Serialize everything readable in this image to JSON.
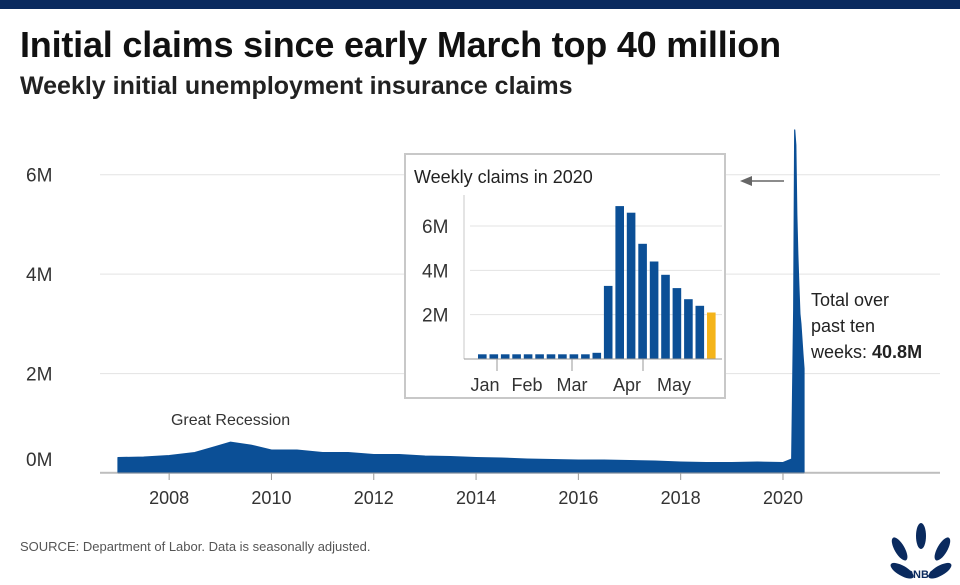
{
  "header": {
    "title": "Initial claims since early March top 40 million",
    "subtitle": "Weekly initial unemployment insurance claims"
  },
  "annotation": {
    "line1": "Total over",
    "line2": "past ten",
    "line3_prefix": "weeks: ",
    "line3_value": "40.8M"
  },
  "source": "SOURCE: Department of Labor. Data is seasonally adjusted.",
  "logo": {
    "icon": "nbc-peacock-icon",
    "text": "CNBC"
  },
  "colors": {
    "bar": "#0b4f96",
    "highlight": "#f4b41a",
    "grid": "#e3e3e3",
    "axis": "#9a9a9a"
  },
  "chart_data": [
    {
      "type": "area",
      "title": "",
      "xlabel": "",
      "ylabel": "",
      "x_ticks": [
        "2008",
        "2010",
        "2012",
        "2014",
        "2016",
        "2018",
        "2020"
      ],
      "x_tick_values": [
        2008,
        2010,
        2012,
        2014,
        2016,
        2018,
        2020
      ],
      "y_ticks": [
        "0M",
        "2M",
        "4M",
        "6M"
      ],
      "y_tick_values": [
        0,
        2,
        4,
        6
      ],
      "ylim": [
        0,
        6.9
      ],
      "xlim": [
        2007.0,
        2020.45
      ],
      "grid": true,
      "annotation": "Great Recession",
      "annotation_x": 2009.2,
      "series": [
        {
          "units": "millions",
          "x": [
            2007.0,
            2007.5,
            2008.0,
            2008.5,
            2008.9,
            2009.2,
            2009.6,
            2010.0,
            2010.5,
            2011.0,
            2011.5,
            2012.0,
            2012.5,
            2013.0,
            2013.5,
            2014.0,
            2014.5,
            2015.0,
            2015.5,
            2016.0,
            2016.5,
            2017.0,
            2017.5,
            2018.0,
            2018.5,
            2019.0,
            2019.5,
            2020.0,
            2020.17,
            2020.21,
            2020.23,
            2020.25,
            2020.27,
            2020.29,
            2020.31,
            2020.33,
            2020.35,
            2020.37,
            2020.39,
            2020.41
          ],
          "values": [
            0.31,
            0.32,
            0.35,
            0.41,
            0.53,
            0.62,
            0.56,
            0.46,
            0.46,
            0.41,
            0.41,
            0.37,
            0.37,
            0.34,
            0.33,
            0.31,
            0.3,
            0.28,
            0.27,
            0.26,
            0.26,
            0.25,
            0.24,
            0.22,
            0.21,
            0.21,
            0.22,
            0.21,
            0.28,
            3.3,
            6.9,
            6.6,
            5.2,
            4.4,
            3.8,
            3.2,
            3.0,
            2.7,
            2.4,
            2.1
          ]
        }
      ]
    },
    {
      "type": "bar",
      "title": "Weekly claims in 2020",
      "xlabel": "",
      "ylabel": "",
      "x_ticks": [
        "Jan",
        "Feb",
        "Mar",
        "Apr",
        "May"
      ],
      "y_ticks": [
        "2M",
        "4M",
        "6M"
      ],
      "y_tick_values": [
        2,
        4,
        6
      ],
      "ylim": [
        0,
        7.4
      ],
      "grid": true,
      "series": [
        {
          "units": "millions",
          "weeks": [
            "Jan 4",
            "Jan 11",
            "Jan 18",
            "Jan 25",
            "Feb 1",
            "Feb 8",
            "Feb 15",
            "Feb 22",
            "Feb 29",
            "Mar 7",
            "Mar 14",
            "Mar 21",
            "Mar 28",
            "Apr 4",
            "Apr 11",
            "Apr 18",
            "Apr 25",
            "May 2",
            "May 9",
            "May 16",
            "May 23"
          ],
          "values": [
            0.21,
            0.21,
            0.21,
            0.21,
            0.21,
            0.21,
            0.21,
            0.21,
            0.21,
            0.21,
            0.28,
            3.3,
            6.9,
            6.6,
            5.2,
            4.4,
            3.8,
            3.2,
            2.7,
            2.4,
            2.1
          ],
          "highlight_index": 20
        }
      ]
    }
  ]
}
